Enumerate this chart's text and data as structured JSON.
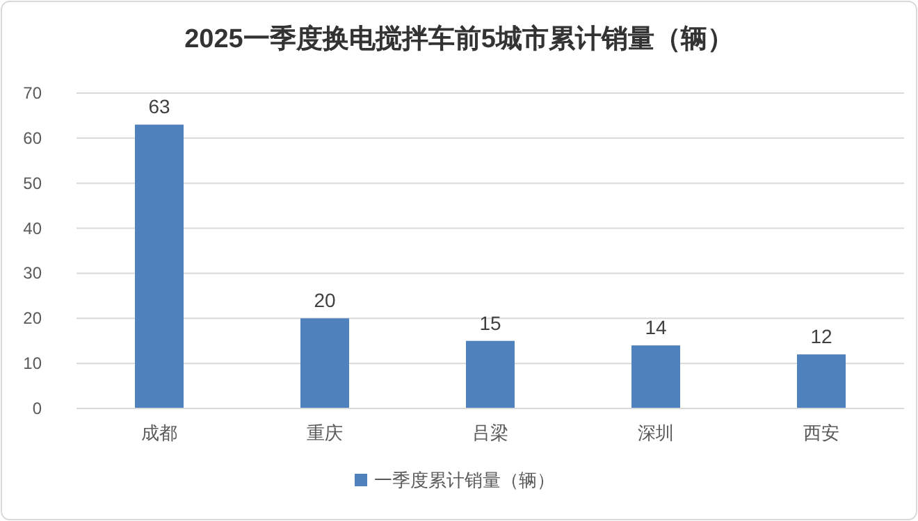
{
  "chart_data": {
    "type": "bar",
    "title": "2025一季度换电搅拌车前5城市累计销量（辆）",
    "categories": [
      "成都",
      "重庆",
      "吕梁",
      "深圳",
      "西安"
    ],
    "series": [
      {
        "name": "一季度累计销量（辆）",
        "color": "#4f81bd",
        "values": [
          63,
          20,
          15,
          14,
          12
        ]
      }
    ],
    "ylim": [
      0,
      70
    ],
    "yticks": [
      0,
      10,
      20,
      30,
      40,
      50,
      60,
      70
    ],
    "grid": "y",
    "legend": "bottom",
    "data_labels": true
  }
}
